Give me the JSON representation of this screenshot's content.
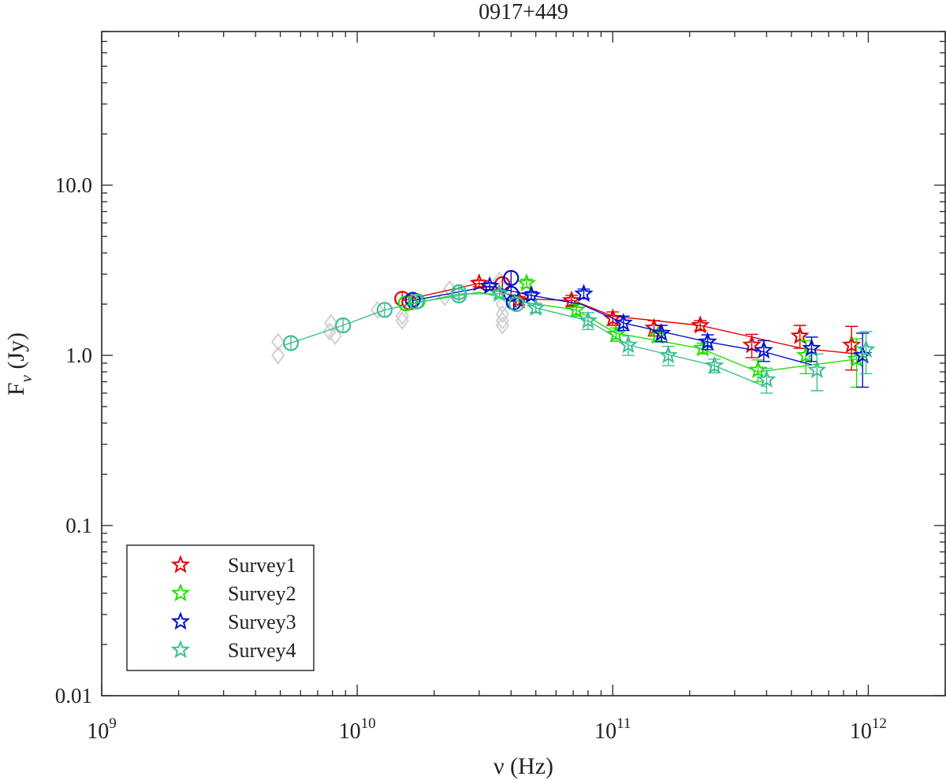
{
  "chart_data": {
    "type": "scatter",
    "title": "0917+449",
    "xlabel": "ν (Hz)",
    "ylabel_main": "F",
    "ylabel_sub": "ν",
    "ylabel_unit": " (Jy)",
    "x_scale": "log",
    "y_scale": "log",
    "xlim": [
      1000000000.0,
      2000000000000.0
    ],
    "ylim": [
      0.01,
      80
    ],
    "x_ticks": [
      {
        "value": 1000000000.0,
        "base": "10",
        "exp": "9"
      },
      {
        "value": 10000000000.0,
        "base": "10",
        "exp": "10"
      },
      {
        "value": 100000000000.0,
        "base": "10",
        "exp": "11"
      },
      {
        "value": 1000000000000.0,
        "base": "10",
        "exp": "12"
      }
    ],
    "y_ticks": [
      {
        "value": 0.01,
        "label": "0.01"
      },
      {
        "value": 0.1,
        "label": "0.1"
      },
      {
        "value": 1.0,
        "label": "1.0"
      },
      {
        "value": 10.0,
        "label": "10.0"
      }
    ],
    "legend_position": "bottom-left",
    "grid": false,
    "background_points": [
      {
        "x": 4900000000.0,
        "y": 1.2
      },
      {
        "x": 4900000000.0,
        "y": 1.0
      },
      {
        "x": 7800000000.0,
        "y": 1.38
      },
      {
        "x": 7900000000.0,
        "y": 1.55
      },
      {
        "x": 8200000000.0,
        "y": 1.3
      },
      {
        "x": 12000000000.0,
        "y": 1.85
      },
      {
        "x": 15000000000.0,
        "y": 1.7
      },
      {
        "x": 15000000000.0,
        "y": 1.6
      },
      {
        "x": 22000000000.0,
        "y": 2.2
      },
      {
        "x": 23000000000.0,
        "y": 2.45
      },
      {
        "x": 36000000000.0,
        "y": 2.75
      },
      {
        "x": 37000000000.0,
        "y": 2.5
      },
      {
        "x": 37000000000.0,
        "y": 2.0
      },
      {
        "x": 37000000000.0,
        "y": 1.75
      },
      {
        "x": 37000000000.0,
        "y": 1.6
      },
      {
        "x": 37000000000.0,
        "y": 1.5
      }
    ],
    "series": [
      {
        "name": "Survey1",
        "color": "#e00000",
        "line": [
          {
            "x": 15000000000.0,
            "y": 2.1
          },
          {
            "x": 30000000000.0,
            "y": 2.65
          },
          {
            "x": 43000000000.0,
            "y": 2.15
          },
          {
            "x": 70000000000.0,
            "y": 2.1
          },
          {
            "x": 100000000000.0,
            "y": 1.7
          },
          {
            "x": 220000000000.0,
            "y": 1.5
          },
          {
            "x": 550000000000.0,
            "y": 1.1
          },
          {
            "x": 900000000000.0,
            "y": 1.02
          }
        ],
        "circles": [
          {
            "x": 15000000000.0,
            "y": 2.15
          },
          {
            "x": 16000000000.0,
            "y": 2.05
          },
          {
            "x": 37000000000.0,
            "y": 2.62
          }
        ],
        "stars": [
          {
            "x": 30000000000.0,
            "y": 2.65,
            "err": 0.12
          },
          {
            "x": 43000000000.0,
            "y": 2.1,
            "err": 0.12
          },
          {
            "x": 69000000000.0,
            "y": 2.1,
            "err": 0.15
          },
          {
            "x": 100000000000.0,
            "y": 1.65,
            "err": 0.15
          },
          {
            "x": 145000000000.0,
            "y": 1.45,
            "err": 0.15
          },
          {
            "x": 220000000000.0,
            "y": 1.5,
            "err": 0.1
          },
          {
            "x": 350000000000.0,
            "y": 1.15,
            "err": 0.18
          },
          {
            "x": 540000000000.0,
            "y": 1.3,
            "err": 0.2
          },
          {
            "x": 860000000000.0,
            "y": 1.15,
            "err": 0.33
          }
        ]
      },
      {
        "name": "Survey2",
        "color": "#22e000",
        "line": [
          {
            "x": 15500000000.0,
            "y": 2.0
          },
          {
            "x": 30000000000.0,
            "y": 2.35
          },
          {
            "x": 45000000000.0,
            "y": 2.05
          },
          {
            "x": 72000000000.0,
            "y": 1.85
          },
          {
            "x": 103000000000.0,
            "y": 1.35
          },
          {
            "x": 220000000000.0,
            "y": 1.1
          },
          {
            "x": 370000000000.0,
            "y": 0.8
          },
          {
            "x": 900000000000.0,
            "y": 0.95
          }
        ],
        "circles": [
          {
            "x": 15500000000.0,
            "y": 2.02
          },
          {
            "x": 17200000000.0,
            "y": 2.08
          }
        ],
        "stars": [
          {
            "x": 46000000000.0,
            "y": 2.65,
            "err": 0.15
          },
          {
            "x": 72000000000.0,
            "y": 1.85,
            "err": 0.15
          },
          {
            "x": 103000000000.0,
            "y": 1.33,
            "err": 0.12
          },
          {
            "x": 150000000000.0,
            "y": 1.3,
            "err": 0.1
          },
          {
            "x": 225000000000.0,
            "y": 1.1,
            "err": 0.08
          },
          {
            "x": 370000000000.0,
            "y": 0.82,
            "err": 0.12
          },
          {
            "x": 570000000000.0,
            "y": 1.0,
            "err": 0.22
          },
          {
            "x": 900000000000.0,
            "y": 0.95,
            "err": 0.3
          }
        ]
      },
      {
        "name": "Survey3",
        "color": "#0010d0",
        "line": [
          {
            "x": 16500000000.0,
            "y": 2.1
          },
          {
            "x": 33000000000.0,
            "y": 2.55
          },
          {
            "x": 48000000000.0,
            "y": 2.25
          },
          {
            "x": 75000000000.0,
            "y": 2.0
          },
          {
            "x": 110000000000.0,
            "y": 1.55
          },
          {
            "x": 235000000000.0,
            "y": 1.2
          },
          {
            "x": 390000000000.0,
            "y": 1.05
          },
          {
            "x": 600000000000.0,
            "y": 0.88
          }
        ],
        "circles": [
          {
            "x": 16500000000.0,
            "y": 2.12
          },
          {
            "x": 40000000000.0,
            "y": 2.85
          },
          {
            "x": 40000000000.0,
            "y": 2.3
          },
          {
            "x": 41000000000.0,
            "y": 2.05
          }
        ],
        "stars": [
          {
            "x": 33000000000.0,
            "y": 2.55,
            "err": 0.12
          },
          {
            "x": 48000000000.0,
            "y": 2.25,
            "err": 0.12
          },
          {
            "x": 77000000000.0,
            "y": 2.3,
            "err": 0.15
          },
          {
            "x": 110000000000.0,
            "y": 1.55,
            "err": 0.15
          },
          {
            "x": 155000000000.0,
            "y": 1.35,
            "err": 0.15
          },
          {
            "x": 235000000000.0,
            "y": 1.2,
            "err": 0.12
          },
          {
            "x": 390000000000.0,
            "y": 1.07,
            "err": 0.15
          },
          {
            "x": 600000000000.0,
            "y": 1.1,
            "err": 0.18
          },
          {
            "x": 950000000000.0,
            "y": 1.0,
            "err": 0.35
          }
        ]
      },
      {
        "name": "Survey4",
        "color": "#3cbf95",
        "line": [
          {
            "x": 5200000000.0,
            "y": 1.15
          },
          {
            "x": 8800000000.0,
            "y": 1.5
          },
          {
            "x": 12800000000.0,
            "y": 1.85
          },
          {
            "x": 25000000000.0,
            "y": 2.3
          },
          {
            "x": 40000000000.0,
            "y": 2.3
          },
          {
            "x": 50000000000.0,
            "y": 1.9
          },
          {
            "x": 80000000000.0,
            "y": 1.6
          },
          {
            "x": 115000000000.0,
            "y": 1.15
          },
          {
            "x": 250000000000.0,
            "y": 0.87
          },
          {
            "x": 400000000000.0,
            "y": 0.65
          }
        ],
        "circles": [
          {
            "x": 5500000000.0,
            "y": 1.18
          },
          {
            "x": 8800000000.0,
            "y": 1.5
          },
          {
            "x": 12800000000.0,
            "y": 1.85
          },
          {
            "x": 17000000000.0,
            "y": 2.07
          },
          {
            "x": 25000000000.0,
            "y": 2.25
          },
          {
            "x": 25000000000.0,
            "y": 2.35
          },
          {
            "x": 42000000000.0,
            "y": 2.0
          }
        ],
        "stars": [
          {
            "x": 36000000000.0,
            "y": 2.3,
            "err": 0.12
          },
          {
            "x": 50000000000.0,
            "y": 1.9,
            "err": 0.12
          },
          {
            "x": 80000000000.0,
            "y": 1.6,
            "err": 0.18
          },
          {
            "x": 115000000000.0,
            "y": 1.15,
            "err": 0.15
          },
          {
            "x": 165000000000.0,
            "y": 1.0,
            "err": 0.13
          },
          {
            "x": 250000000000.0,
            "y": 0.87,
            "err": 0.08
          },
          {
            "x": 400000000000.0,
            "y": 0.72,
            "err": 0.12
          },
          {
            "x": 630000000000.0,
            "y": 0.82,
            "err": 0.2
          },
          {
            "x": 980000000000.0,
            "y": 1.08,
            "err": 0.3
          }
        ]
      }
    ]
  }
}
